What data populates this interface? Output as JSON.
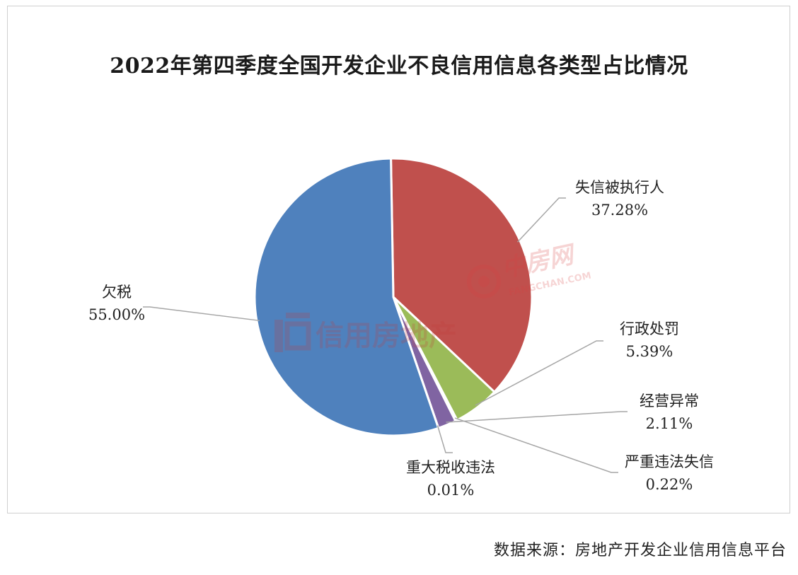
{
  "chart_data": {
    "type": "pie",
    "title": "2022年第四季度全国开发企业不良信用信息各类型占比情况",
    "slices": [
      {
        "name": "失信被执行人",
        "value": 37.28,
        "label": "37.28%",
        "color": "#C0504D"
      },
      {
        "name": "行政处罚",
        "value": 5.39,
        "label": "5.39%",
        "color": "#9BBB59"
      },
      {
        "name": "严重违法失信",
        "value": 0.22,
        "label": "0.22%",
        "color": "#4BACC6"
      },
      {
        "name": "经营异常",
        "value": 2.11,
        "label": "2.11%",
        "color": "#8064A2"
      },
      {
        "name": "重大税收违法",
        "value": 0.01,
        "label": "0.01%",
        "color": "#F79646"
      },
      {
        "name": "欠税",
        "value": 55.0,
        "label": "55.00%",
        "color": "#4F81BD"
      }
    ]
  },
  "source": "数据来源：房地产开发企业信用信息平台",
  "watermarks": {
    "left_text": "信用房地产",
    "right_text": "中房网",
    "right_sub": "FANGCHAN.COM"
  }
}
